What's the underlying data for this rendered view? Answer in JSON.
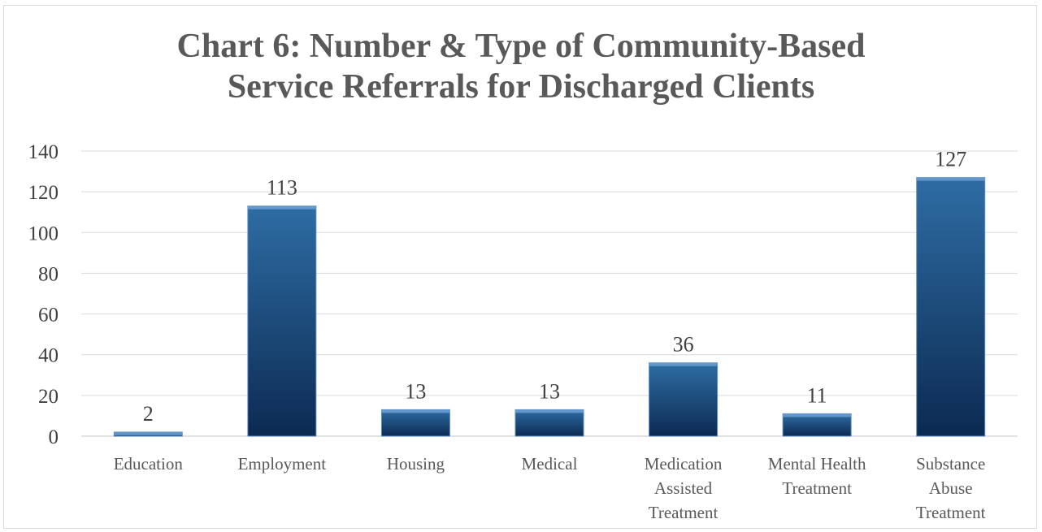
{
  "chart_data": {
    "type": "bar",
    "title_lines": [
      "Chart 6: Number & Type of Community-Based",
      "Service Referrals for Discharged Clients"
    ],
    "categories": [
      [
        "Education"
      ],
      [
        "Employment"
      ],
      [
        "Housing"
      ],
      [
        "Medical"
      ],
      [
        "Medication",
        "Assisted",
        "Treatment"
      ],
      [
        "Mental Health",
        "Treatment"
      ],
      [
        "Substance",
        "Abuse",
        "Treatment"
      ]
    ],
    "values": [
      2,
      113,
      13,
      13,
      36,
      11,
      127
    ],
    "data_labels": [
      "2",
      "113",
      "13",
      "13",
      "36",
      "11",
      "127"
    ],
    "yticks": [
      0,
      20,
      40,
      60,
      80,
      100,
      120,
      140
    ],
    "ylim": [
      0,
      140
    ],
    "grid": true,
    "legend": "none",
    "colors": {
      "bar_top": "#2e6da4",
      "bar_bottom": "#0c2a52",
      "grid": "#d9d9d9",
      "title": "#595959",
      "text": "#404040"
    }
  }
}
